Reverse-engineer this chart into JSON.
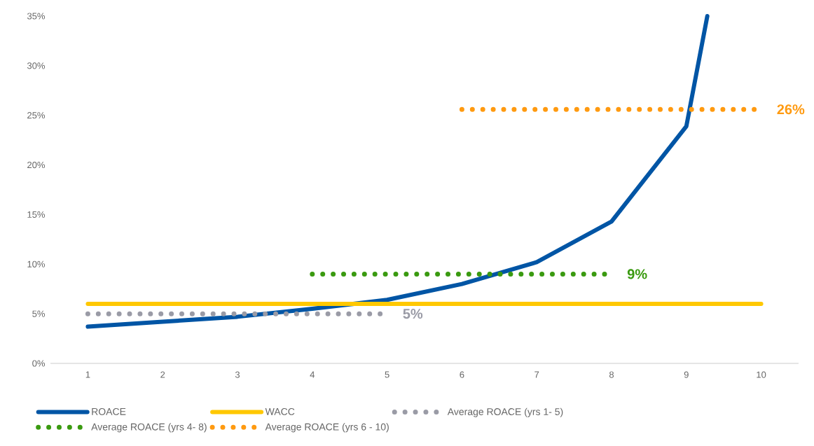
{
  "chart_data": {
    "type": "line",
    "series": [
      {
        "name": "ROACE",
        "color": "#0055a5",
        "x": [
          1,
          2,
          3,
          4,
          5,
          6,
          7,
          8,
          9,
          9.28
        ],
        "values": [
          3.7,
          4.2,
          4.7,
          5.5,
          6.4,
          8.0,
          10.2,
          14.3,
          23.9,
          35
        ]
      },
      {
        "name": "WACC",
        "color": "#ffc800",
        "x": [
          1,
          10
        ],
        "values": [
          6,
          6
        ]
      },
      {
        "name": "Average ROACE (yrs 1- 5)",
        "color": "#9a9ba6",
        "x": [
          1,
          5
        ],
        "values": [
          5,
          5
        ],
        "line_style": "dotted"
      },
      {
        "name": "Average ROACE (yrs 4- 8)",
        "color": "#3a9a10",
        "x": [
          4,
          8
        ],
        "values": [
          9,
          9
        ],
        "line_style": "dotted"
      },
      {
        "name": "Average ROACE (yrs 6 - 10)",
        "color": "#ff9a10",
        "x": [
          6,
          10
        ],
        "values": [
          25.6,
          25.6
        ],
        "line_style": "dotted"
      }
    ],
    "xlim": [
      0.5,
      10.5
    ],
    "ylim": [
      0,
      35
    ],
    "xticks": [
      1,
      2,
      3,
      4,
      5,
      6,
      7,
      8,
      9,
      10
    ],
    "yticks": [
      {
        "value": 0,
        "label": "0%"
      },
      {
        "value": 5,
        "label": "5%"
      },
      {
        "value": 10,
        "label": "10%"
      },
      {
        "value": 15,
        "label": "15%"
      },
      {
        "value": 20,
        "label": "20%"
      },
      {
        "value": 25,
        "label": "25%"
      },
      {
        "value": 30,
        "label": "30%"
      },
      {
        "value": 35,
        "label": "35%"
      }
    ],
    "annotations": [
      {
        "text": "5%",
        "x": 5,
        "y": 5
      },
      {
        "text": "9%",
        "x": 8,
        "y": 9
      },
      {
        "text": "26%",
        "x": 10,
        "y": 25.6
      }
    ],
    "legend": "bottom",
    "grid": false,
    "marker": "none"
  }
}
